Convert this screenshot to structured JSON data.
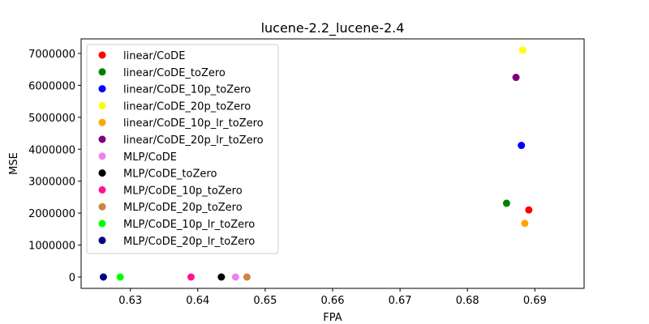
{
  "chart_data": {
    "type": "scatter",
    "title": "lucene-2.2_lucene-2.4",
    "xlabel": "FPA",
    "ylabel": "MSE",
    "xlim": [
      0.6227,
      0.6973
    ],
    "ylim": [
      -355000,
      7455000
    ],
    "xticks": [
      0.63,
      0.64,
      0.65,
      0.66,
      0.67,
      0.68,
      0.69
    ],
    "yticks": [
      0,
      1000000,
      2000000,
      3000000,
      4000000,
      5000000,
      6000000,
      7000000
    ],
    "grid": false,
    "legend_position": "top-left",
    "series": [
      {
        "name": "linear/CoDE",
        "color": "#ff0000",
        "x": 0.6891,
        "y": 2100000
      },
      {
        "name": "linear/CoDE_toZero",
        "color": "#008000",
        "x": 0.6858,
        "y": 2310000
      },
      {
        "name": "linear/CoDE_10p_toZero",
        "color": "#0000ff",
        "x": 0.688,
        "y": 4120000
      },
      {
        "name": "linear/CoDE_20p_toZero",
        "color": "#ffff00",
        "x": 0.6882,
        "y": 7100000
      },
      {
        "name": "linear/CoDE_10p_lr_toZero",
        "color": "#ffa500",
        "x": 0.6885,
        "y": 1680000
      },
      {
        "name": "linear/CoDE_20p_lr_toZero",
        "color": "#800080",
        "x": 0.6872,
        "y": 6250000
      },
      {
        "name": "MLP/CoDE",
        "color": "#ee82ee",
        "x": 0.6456,
        "y": 0
      },
      {
        "name": "MLP/CoDE_toZero",
        "color": "#000000",
        "x": 0.6435,
        "y": 0
      },
      {
        "name": "MLP/CoDE_10p_toZero",
        "color": "#ff1493",
        "x": 0.639,
        "y": 0
      },
      {
        "name": "MLP/CoDE_20p_toZero",
        "color": "#cd853f",
        "x": 0.6473,
        "y": 0
      },
      {
        "name": "MLP/CoDE_10p_lr_toZero",
        "color": "#00ff00",
        "x": 0.6285,
        "y": 0
      },
      {
        "name": "MLP/CoDE_20p_lr_toZero",
        "color": "#000080",
        "x": 0.626,
        "y": 0
      }
    ]
  }
}
